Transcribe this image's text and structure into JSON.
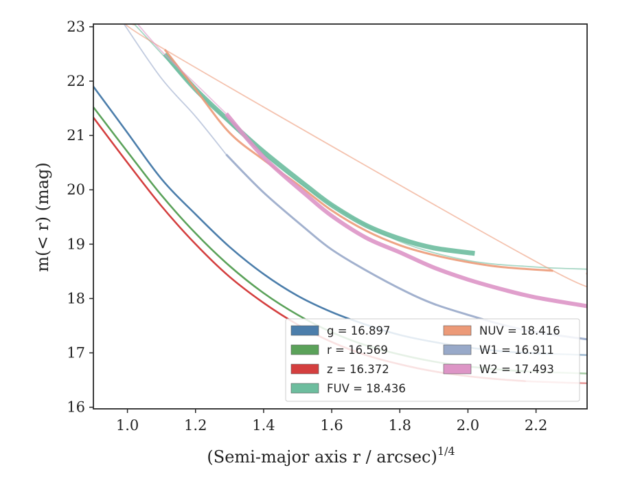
{
  "chart_data": {
    "type": "line",
    "xlabel": "(Semi-major axis r / arcsec)",
    "xlabel_sup": "1/4",
    "ylabel": "m(< r) (mag)",
    "xlim": [
      0.9,
      2.35
    ],
    "ylim": [
      23.05,
      15.97
    ],
    "y_inverted": true,
    "x_ticks": [
      "1.0",
      "1.2",
      "1.4",
      "1.6",
      "1.8",
      "2.0",
      "2.2"
    ],
    "y_ticks": [
      "16",
      "17",
      "18",
      "19",
      "20",
      "21",
      "22",
      "23"
    ],
    "legend_position": "lower-right",
    "legend_rows": [
      [
        "g = 16.897",
        "NUV = 18.416"
      ],
      [
        "r = 16.569",
        "W1 = 16.911"
      ],
      [
        "z = 16.372",
        "W2 = 17.493"
      ],
      [
        "FUV = 18.436",
        ""
      ]
    ],
    "series": [
      {
        "name": "g = 16.897",
        "color": "#4c7eab",
        "band": 2.5,
        "x": [
          0.9,
          1.0,
          1.1,
          1.2,
          1.3,
          1.4,
          1.5,
          1.6,
          1.7,
          1.8,
          1.9,
          2.0,
          2.1,
          2.17,
          2.25,
          2.35
        ],
        "y": [
          21.9,
          21.05,
          20.2,
          19.55,
          18.95,
          18.45,
          18.05,
          17.75,
          17.52,
          17.33,
          17.2,
          17.1,
          17.03,
          17.0,
          16.98,
          16.96
        ],
        "solid_until": 2.25
      },
      {
        "name": "r = 16.569",
        "color": "#5ba25a",
        "band": 2.5,
        "x": [
          0.9,
          1.0,
          1.1,
          1.2,
          1.3,
          1.4,
          1.5,
          1.6,
          1.7,
          1.8,
          1.9,
          2.0,
          2.1,
          2.17,
          2.25,
          2.35
        ],
        "y": [
          21.52,
          20.7,
          19.9,
          19.2,
          18.6,
          18.1,
          17.7,
          17.38,
          17.14,
          16.97,
          16.84,
          16.75,
          16.69,
          16.66,
          16.64,
          16.62
        ],
        "solid_until": 2.17
      },
      {
        "name": "z = 16.372",
        "color": "#d43f3f",
        "band": 2.5,
        "x": [
          0.9,
          1.0,
          1.1,
          1.2,
          1.3,
          1.4,
          1.5,
          1.6,
          1.7,
          1.8,
          1.9,
          2.0,
          2.1,
          2.17,
          2.25,
          2.35
        ],
        "y": [
          21.33,
          20.5,
          19.7,
          19.0,
          18.4,
          17.92,
          17.52,
          17.2,
          16.96,
          16.79,
          16.66,
          16.57,
          16.51,
          16.48,
          16.46,
          16.44
        ],
        "solid_until": 2.17
      },
      {
        "name": "FUV = 18.436",
        "color": "#6dbd9e",
        "band": 7,
        "x": [
          1.11,
          1.2,
          1.31,
          1.4,
          1.53,
          1.6,
          1.7,
          1.8,
          1.9,
          2.02
        ],
        "y": [
          22.5,
          21.85,
          21.2,
          20.7,
          20.05,
          19.72,
          19.35,
          19.1,
          18.93,
          18.83
        ],
        "dashed_x": [
          1.02,
          1.2,
          1.4,
          1.6,
          1.8,
          2.0,
          2.2,
          2.35
        ],
        "dashed_y": [
          23.05,
          21.85,
          20.65,
          19.72,
          19.05,
          18.7,
          18.58,
          18.54
        ]
      },
      {
        "name": "NUV = 18.416",
        "color": "#ec9a78",
        "band": 3,
        "x": [
          1.11,
          1.2,
          1.3,
          1.4,
          1.5,
          1.6,
          1.7,
          1.8,
          1.9,
          2.0,
          2.1,
          2.25
        ],
        "y": [
          22.58,
          21.85,
          21.05,
          20.55,
          20.1,
          19.62,
          19.25,
          18.98,
          18.8,
          18.67,
          18.58,
          18.51
        ],
        "dashed_x": [
          1.02,
          1.11,
          2.25,
          2.35
        ],
        "dashed_y": [
          23.05,
          22.58,
          18.51,
          18.47
        ]
      },
      {
        "name": "W1 = 16.911",
        "color": "#98a9c9",
        "band": 3,
        "x": [
          1.29,
          1.4,
          1.53,
          1.6,
          1.7,
          1.82,
          1.9,
          2.0,
          2.1,
          2.2,
          2.35
        ],
        "y": [
          20.65,
          19.95,
          19.25,
          18.9,
          18.52,
          18.12,
          17.9,
          17.7,
          17.52,
          17.38,
          17.25
        ],
        "dashed_x": [
          0.99,
          1.1,
          1.2,
          1.29
        ],
        "dashed_y": [
          23.05,
          22.05,
          21.35,
          20.65
        ]
      },
      {
        "name": "W2 = 17.493",
        "color": "#dd95c6",
        "band": 6,
        "x": [
          1.29,
          1.4,
          1.53,
          1.6,
          1.7,
          1.8,
          1.9,
          2.0,
          2.1,
          2.2,
          2.35
        ],
        "y": [
          21.4,
          20.6,
          19.88,
          19.52,
          19.12,
          18.85,
          18.57,
          18.35,
          18.17,
          18.02,
          17.86
        ],
        "dashed_x": [
          1.03,
          1.1,
          1.2,
          1.29
        ],
        "dashed_y": [
          23.05,
          22.55,
          21.95,
          21.4
        ]
      }
    ]
  }
}
